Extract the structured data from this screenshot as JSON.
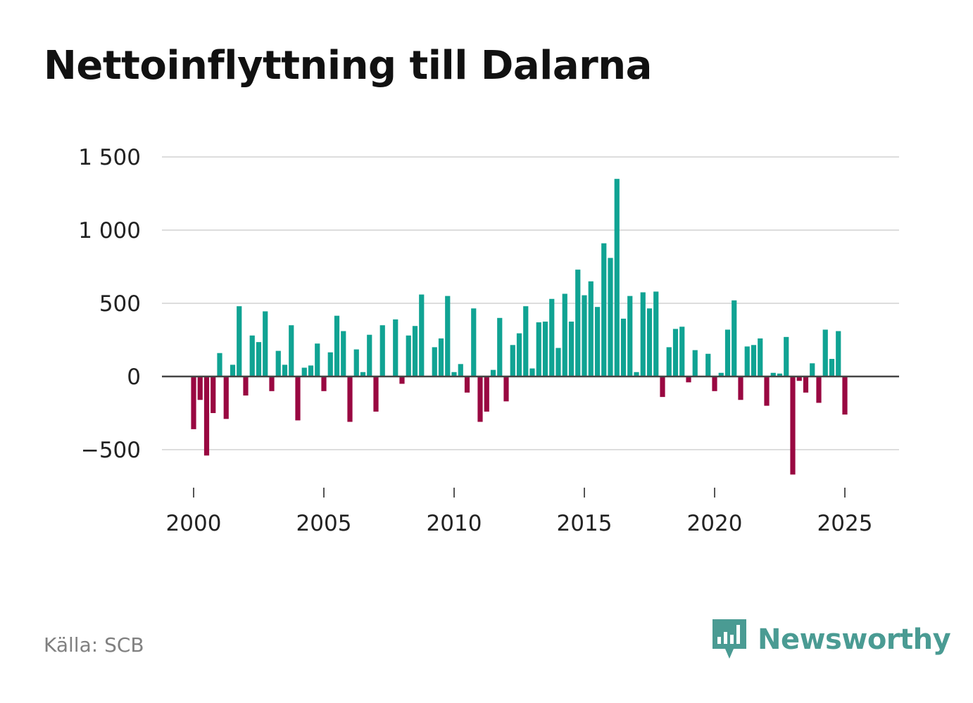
{
  "title": "Nettoinflyttning till Dalarna",
  "source": "Källa: SCB",
  "brand": {
    "name": "Newsworthy",
    "icon": "bar-chart-speech-bubble-icon"
  },
  "colors": {
    "positive": "#10a393",
    "negative": "#990841",
    "grid": "#dddddd",
    "zero": "#444444",
    "brand": "#4a9b93"
  },
  "chart_data": {
    "type": "bar",
    "title": "Nettoinflyttning till Dalarna",
    "xlabel": "",
    "ylabel": "",
    "frequency": "quarterly",
    "first_period": "2000 Q1",
    "xlim": [
      1999.0,
      2027.0
    ],
    "ylim": [
      -750,
      1500
    ],
    "y_ticks": [
      1500,
      1000,
      500,
      0,
      -500
    ],
    "y_tick_labels": [
      "1 500",
      "1 000",
      "500",
      "0",
      "−500"
    ],
    "x_ticks": [
      2000,
      2005,
      2010,
      2015,
      2020,
      2025
    ],
    "x_tick_labels": [
      "2000",
      "2005",
      "2010",
      "2015",
      "2020",
      "2025"
    ],
    "grid": true,
    "values": [
      -360,
      -160,
      -540,
      -250,
      160,
      -290,
      80,
      480,
      -130,
      280,
      235,
      445,
      -100,
      175,
      80,
      350,
      -300,
      60,
      75,
      225,
      -100,
      165,
      415,
      310,
      -310,
      185,
      30,
      285,
      -240,
      350,
      0,
      390,
      -50,
      280,
      345,
      560,
      0,
      200,
      260,
      550,
      30,
      85,
      -110,
      465,
      -310,
      -240,
      45,
      400,
      -170,
      215,
      295,
      480,
      55,
      370,
      375,
      530,
      195,
      565,
      375,
      730,
      555,
      650,
      475,
      910,
      810,
      1350,
      395,
      550,
      30,
      575,
      465,
      580,
      -140,
      200,
      325,
      340,
      -40,
      180,
      0,
      155,
      -100,
      25,
      320,
      520,
      -160,
      205,
      215,
      260,
      -200,
      25,
      20,
      270,
      -670,
      -30,
      -110,
      90,
      -180,
      320,
      120,
      310,
      -260
    ]
  }
}
